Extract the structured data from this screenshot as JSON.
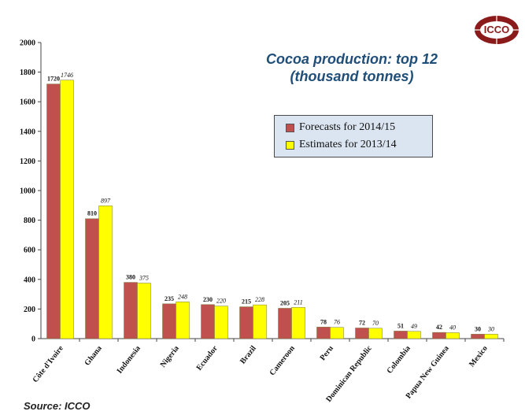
{
  "chart_data": {
    "type": "bar",
    "title": "Cocoa production: top 12",
    "subtitle": "(thousand tonnes)",
    "categories": [
      "Côte d'Ivoire",
      "Ghana",
      "Indonesia",
      "Nigeria",
      "Ecuador",
      "Brazil",
      "Cameroon",
      "Peru",
      "Dominican Republic",
      "Colombia",
      "Papua New Guinea",
      "Mexico"
    ],
    "series": [
      {
        "name": "Forecasts for 2014/15",
        "color": "#c0504d",
        "values": [
          1720,
          810,
          380,
          235,
          230,
          215,
          205,
          78,
          72,
          51,
          42,
          30
        ]
      },
      {
        "name": "Estimates for 2013/14",
        "color": "#ffff00",
        "values": [
          1746,
          897,
          375,
          248,
          220,
          228,
          211,
          76,
          70,
          49,
          40,
          30
        ]
      }
    ],
    "y_ticks": [
      0,
      200,
      400,
      600,
      800,
      1000,
      1200,
      1400,
      1600,
      1800,
      2000
    ],
    "ylim": [
      0,
      2000
    ],
    "xlabel": "",
    "ylabel": "",
    "grid": false,
    "legend_position": "upper-right"
  },
  "source": "Source: ICCO",
  "logo_text": "ICCO"
}
